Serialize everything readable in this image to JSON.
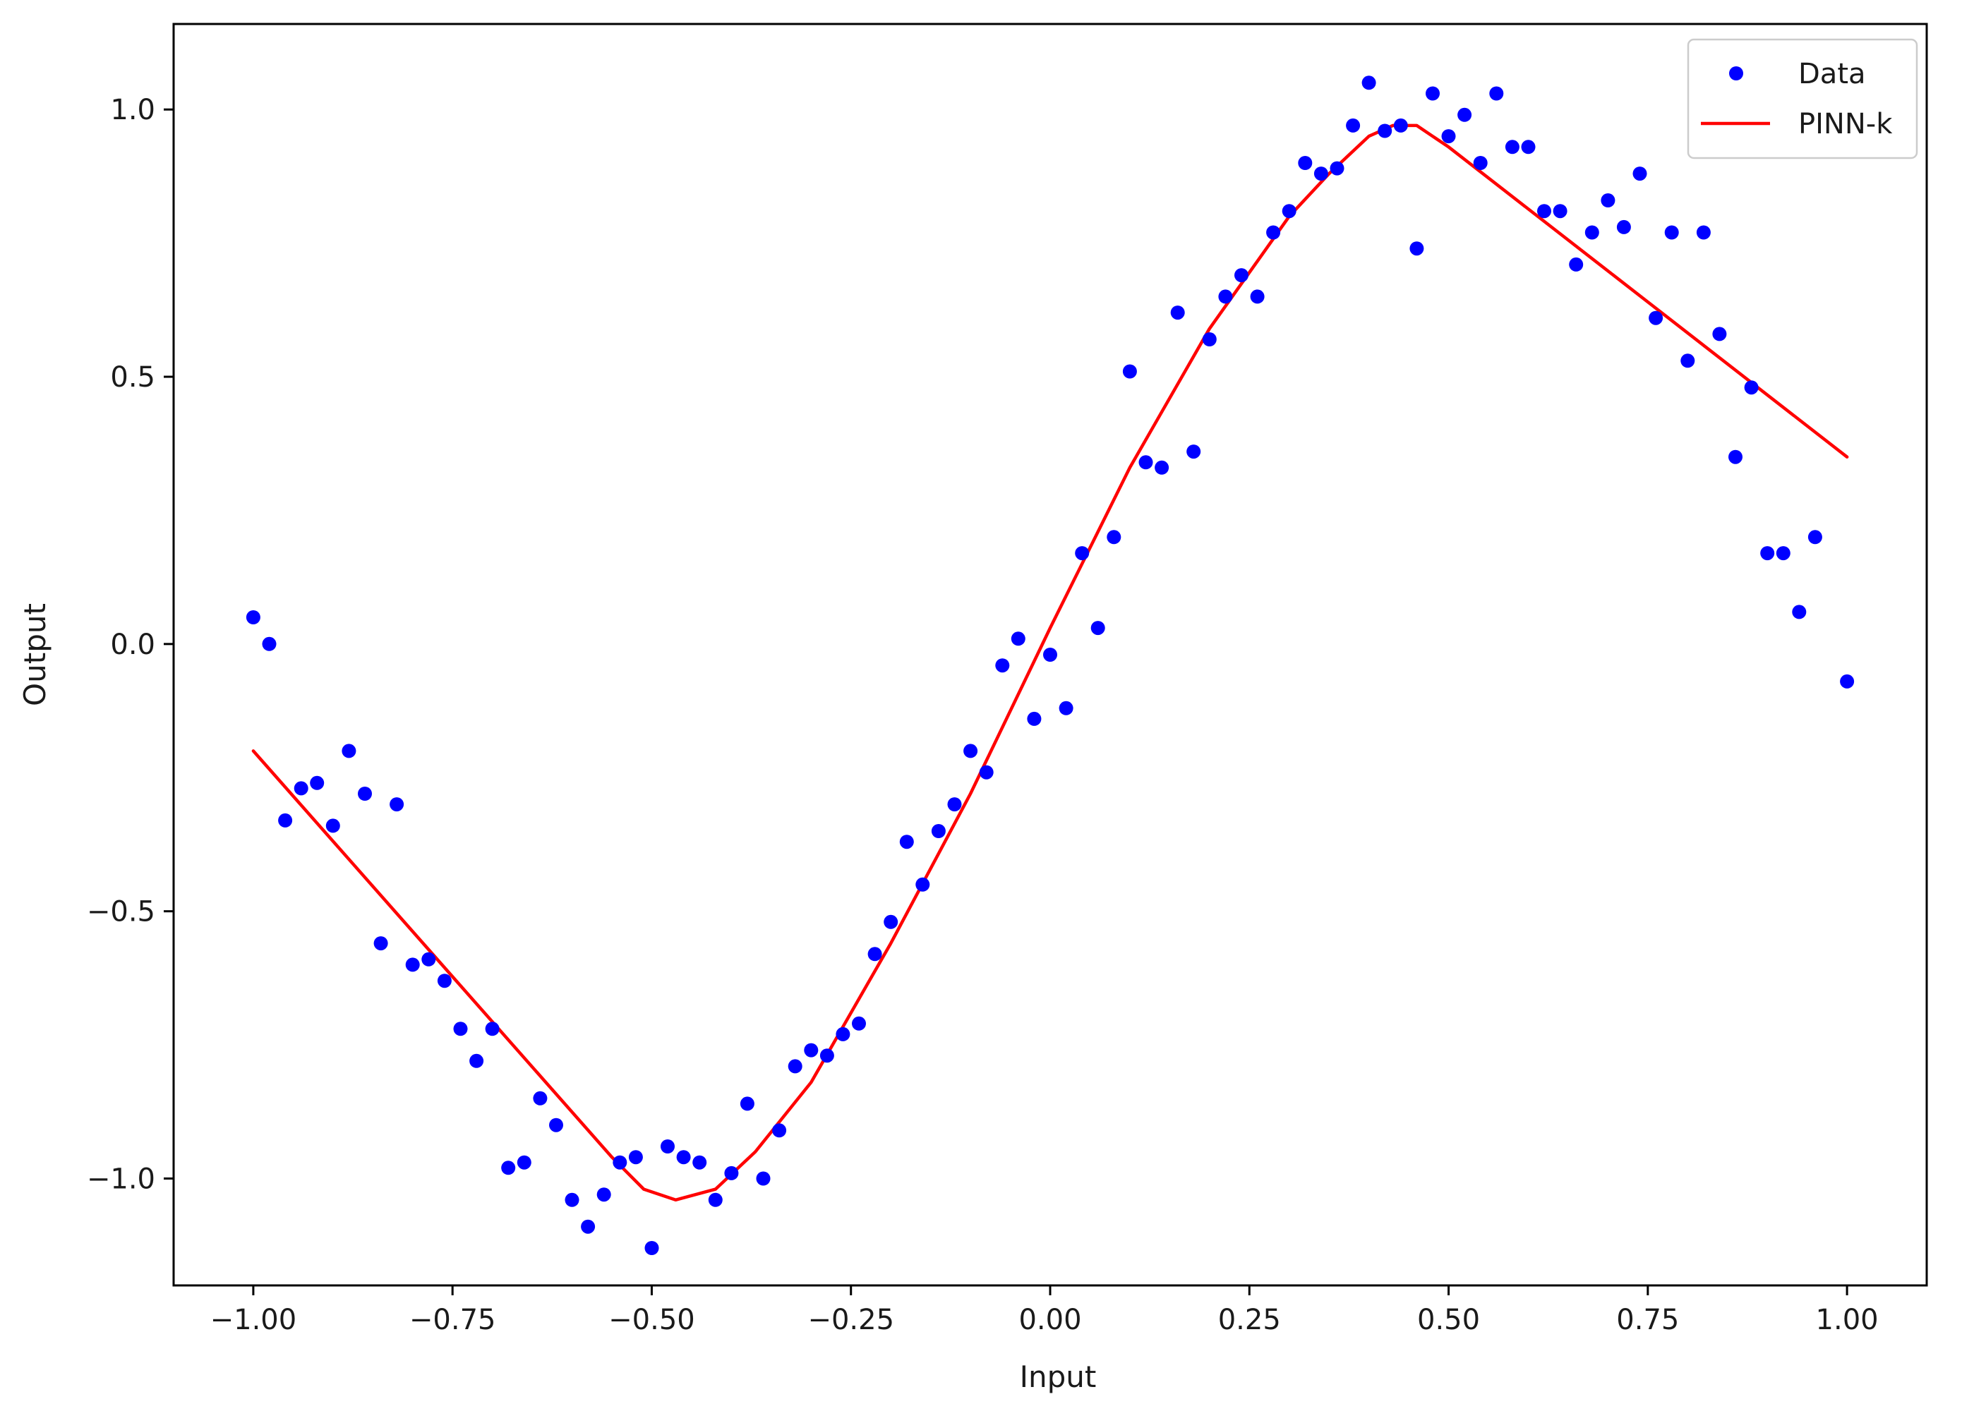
{
  "chart_data": {
    "type": "scatter",
    "title": "",
    "xlabel": "Input",
    "ylabel": "Output",
    "xlim": [
      -1.1,
      1.1
    ],
    "ylim": [
      -1.2,
      1.16
    ],
    "grid": false,
    "legend_position": "top-right",
    "x_ticks": [
      -1.0,
      -0.75,
      -0.5,
      -0.25,
      0.0,
      0.25,
      0.5,
      0.75,
      1.0
    ],
    "x_tick_labels": [
      "−1.00",
      "−0.75",
      "−0.50",
      "−0.25",
      "0.00",
      "0.25",
      "0.50",
      "0.75",
      "1.00"
    ],
    "y_ticks": [
      -1.0,
      -0.5,
      0.0,
      0.5,
      1.0
    ],
    "y_tick_labels": [
      "−1.0",
      "−0.5",
      "0.0",
      "0.5",
      "1.0"
    ],
    "series": [
      {
        "name": "Data",
        "kind": "scatter",
        "color": "#0000ff",
        "points": [
          [
            -1.0,
            0.05
          ],
          [
            -0.98,
            0.0
          ],
          [
            -0.96,
            -0.33
          ],
          [
            -0.94,
            -0.27
          ],
          [
            -0.92,
            -0.26
          ],
          [
            -0.9,
            -0.34
          ],
          [
            -0.88,
            -0.2
          ],
          [
            -0.86,
            -0.28
          ],
          [
            -0.84,
            -0.56
          ],
          [
            -0.82,
            -0.3
          ],
          [
            -0.8,
            -0.6
          ],
          [
            -0.78,
            -0.59
          ],
          [
            -0.76,
            -0.63
          ],
          [
            -0.74,
            -0.72
          ],
          [
            -0.72,
            -0.78
          ],
          [
            -0.7,
            -0.72
          ],
          [
            -0.68,
            -0.98
          ],
          [
            -0.66,
            -0.97
          ],
          [
            -0.64,
            -0.85
          ],
          [
            -0.62,
            -0.9
          ],
          [
            -0.6,
            -1.04
          ],
          [
            -0.58,
            -1.09
          ],
          [
            -0.56,
            -1.03
          ],
          [
            -0.54,
            -0.97
          ],
          [
            -0.52,
            -0.96
          ],
          [
            -0.5,
            -1.13
          ],
          [
            -0.48,
            -0.94
          ],
          [
            -0.46,
            -0.96
          ],
          [
            -0.44,
            -0.97
          ],
          [
            -0.42,
            -1.04
          ],
          [
            -0.4,
            -0.99
          ],
          [
            -0.38,
            -0.86
          ],
          [
            -0.36,
            -1.0
          ],
          [
            -0.34,
            -0.91
          ],
          [
            -0.32,
            -0.79
          ],
          [
            -0.3,
            -0.76
          ],
          [
            -0.28,
            -0.77
          ],
          [
            -0.26,
            -0.73
          ],
          [
            -0.24,
            -0.71
          ],
          [
            -0.22,
            -0.58
          ],
          [
            -0.2,
            -0.52
          ],
          [
            -0.18,
            -0.37
          ],
          [
            -0.16,
            -0.45
          ],
          [
            -0.14,
            -0.35
          ],
          [
            -0.12,
            -0.3
          ],
          [
            -0.1,
            -0.2
          ],
          [
            -0.08,
            -0.24
          ],
          [
            -0.06,
            -0.04
          ],
          [
            -0.04,
            0.01
          ],
          [
            -0.02,
            -0.14
          ],
          [
            0.0,
            -0.02
          ],
          [
            0.02,
            -0.12
          ],
          [
            0.04,
            0.17
          ],
          [
            0.06,
            0.03
          ],
          [
            0.08,
            0.2
          ],
          [
            0.1,
            0.51
          ],
          [
            0.12,
            0.34
          ],
          [
            0.14,
            0.33
          ],
          [
            0.16,
            0.62
          ],
          [
            0.18,
            0.36
          ],
          [
            0.2,
            0.57
          ],
          [
            0.22,
            0.65
          ],
          [
            0.24,
            0.69
          ],
          [
            0.26,
            0.65
          ],
          [
            0.28,
            0.77
          ],
          [
            0.3,
            0.81
          ],
          [
            0.32,
            0.9
          ],
          [
            0.34,
            0.88
          ],
          [
            0.36,
            0.89
          ],
          [
            0.38,
            0.97
          ],
          [
            0.4,
            1.05
          ],
          [
            0.42,
            0.96
          ],
          [
            0.44,
            0.97
          ],
          [
            0.46,
            0.74
          ],
          [
            0.48,
            1.03
          ],
          [
            0.5,
            0.95
          ],
          [
            0.52,
            0.99
          ],
          [
            0.54,
            0.9
          ],
          [
            0.56,
            1.03
          ],
          [
            0.58,
            0.93
          ],
          [
            0.6,
            0.93
          ],
          [
            0.62,
            0.81
          ],
          [
            0.64,
            0.81
          ],
          [
            0.66,
            0.71
          ],
          [
            0.68,
            0.77
          ],
          [
            0.7,
            0.83
          ],
          [
            0.72,
            0.78
          ],
          [
            0.74,
            0.88
          ],
          [
            0.76,
            0.61
          ],
          [
            0.78,
            0.77
          ],
          [
            0.8,
            0.53
          ],
          [
            0.82,
            0.77
          ],
          [
            0.84,
            0.58
          ],
          [
            0.86,
            0.35
          ],
          [
            0.88,
            0.48
          ],
          [
            0.9,
            0.17
          ],
          [
            0.92,
            0.17
          ],
          [
            0.94,
            0.06
          ],
          [
            0.96,
            0.2
          ],
          [
            1.0,
            -0.07
          ]
        ]
      },
      {
        "name": "PINN-k",
        "kind": "line",
        "color": "#ff0000",
        "points": [
          [
            -1.0,
            -0.2
          ],
          [
            -0.55,
            -0.96
          ],
          [
            -0.51,
            -1.02
          ],
          [
            -0.47,
            -1.04
          ],
          [
            -0.42,
            -1.02
          ],
          [
            -0.37,
            -0.95
          ],
          [
            -0.3,
            -0.82
          ],
          [
            -0.2,
            -0.56
          ],
          [
            -0.1,
            -0.28
          ],
          [
            0.0,
            0.03
          ],
          [
            0.1,
            0.33
          ],
          [
            0.2,
            0.59
          ],
          [
            0.3,
            0.8
          ],
          [
            0.35,
            0.88
          ],
          [
            0.4,
            0.95
          ],
          [
            0.43,
            0.97
          ],
          [
            0.46,
            0.97
          ],
          [
            0.5,
            0.93
          ],
          [
            0.75,
            0.64
          ],
          [
            1.0,
            0.35
          ]
        ]
      }
    ]
  }
}
